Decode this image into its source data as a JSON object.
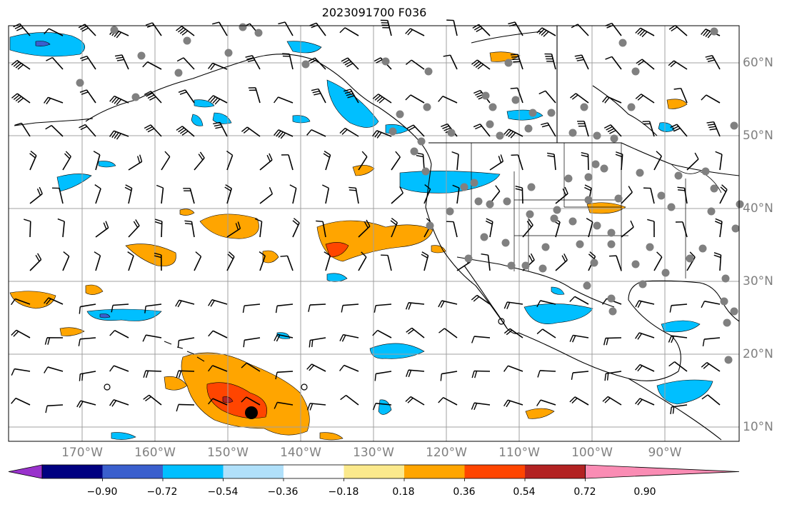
{
  "title": "2023091700 F036",
  "lon_labels": [
    "170°W",
    "160°W",
    "150°W",
    "140°W",
    "130°W",
    "120°W",
    "110°W",
    "100°W",
    "90°W"
  ],
  "lat_labels": [
    "60°N",
    "50°N",
    "40°N",
    "30°N",
    "20°N",
    "10°N"
  ],
  "colorbar": {
    "labels": [
      "−0.90",
      "−0.72",
      "−0.54",
      "−0.36",
      "−0.18",
      "0.18",
      "0.36",
      "0.54",
      "0.72",
      "0.90"
    ],
    "colors": [
      "#9932cc",
      "#000080",
      "#3a5fcd",
      "#00bfff",
      "#b0e0fa",
      "#ffffff",
      "#fbe98c",
      "#ffa500",
      "#ff4500",
      "#b22222",
      "#fa8cb4"
    ]
  },
  "colors": {
    "neg_light": "#00bfff",
    "neg_mid": "#3a5fcd",
    "neg_dark": "#9932cc",
    "pos_light": "#ffa500",
    "pos_mid": "#ff4500",
    "pos_dark": "#b22222",
    "station": "#808080",
    "grid": "#a0a0a0",
    "coast": "#000000"
  }
}
